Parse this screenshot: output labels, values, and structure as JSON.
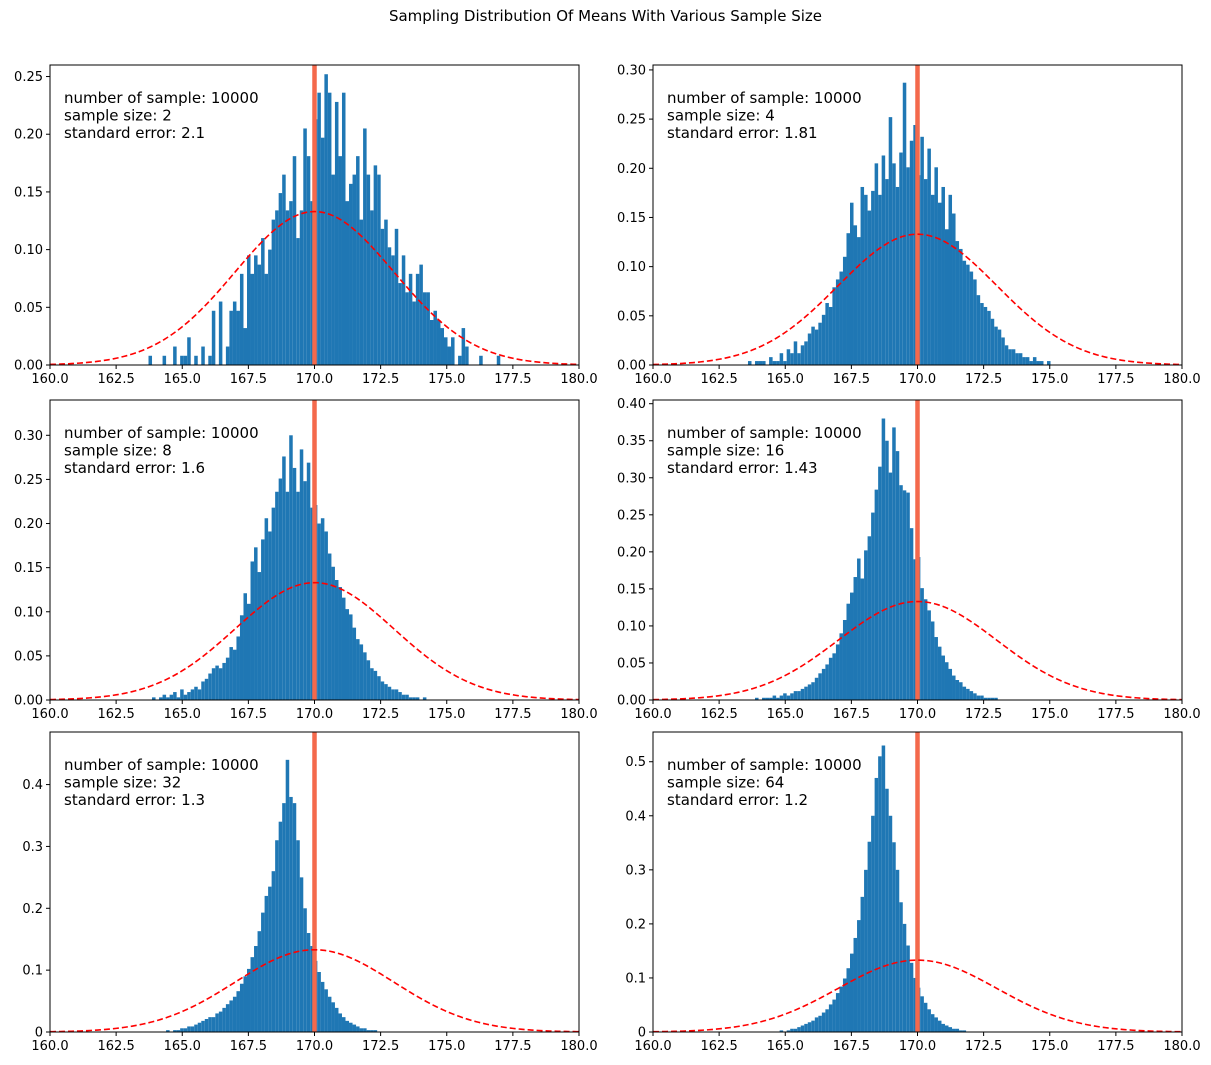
{
  "figure": {
    "title": "Sampling Distribution Of Means With Various Sample Size",
    "colors": {
      "bars": "#1f77b4",
      "mean_line": "#f4694c",
      "normal_curve": "#ff0000"
    }
  },
  "chart_data": [
    {
      "type": "bar",
      "x_range": [
        160,
        180
      ],
      "ylim": [
        0,
        0.26
      ],
      "xticks": [
        "160.0",
        "162.5",
        "165.0",
        "167.5",
        "170.0",
        "172.5",
        "175.0",
        "177.5",
        "180.0"
      ],
      "yticks": [
        "0.00",
        "0.05",
        "0.10",
        "0.15",
        "0.20",
        "0.25"
      ],
      "annotation": [
        "number of sample: 10000",
        "sample size: 2",
        "standard error: 2.1"
      ],
      "mean": 170.0,
      "curve": {
        "mean": 170.0,
        "sd": 3.0
      },
      "hist": {
        "start": 160.0,
        "width": 0.133,
        "values": [
          0,
          0,
          0,
          0,
          0,
          0,
          0,
          0,
          0,
          0,
          0,
          0,
          0,
          0,
          0,
          0,
          0,
          0,
          0,
          0,
          0,
          0,
          0,
          0,
          0,
          0,
          0,
          0,
          0.008,
          0,
          0,
          0,
          0.008,
          0,
          0,
          0.016,
          0,
          0.008,
          0.008,
          0.024,
          0,
          0.008,
          0,
          0.016,
          0,
          0.008,
          0.047,
          0,
          0.055,
          0,
          0.016,
          0.047,
          0.055,
          0.047,
          0.079,
          0.032,
          0.095,
          0.079,
          0.095,
          0.087,
          0.11,
          0.079,
          0.1,
          0.126,
          0.134,
          0.149,
          0.165,
          0.134,
          0.142,
          0.181,
          0.11,
          0.134,
          0.205,
          0.181,
          0.142,
          0.213,
          0.236,
          0.197,
          0.252,
          0.236,
          0.165,
          0.228,
          0.181,
          0.236,
          0.142,
          0.157,
          0.165,
          0.181,
          0.126,
          0.205,
          0.165,
          0.134,
          0.173,
          0.165,
          0.118,
          0.126,
          0.102,
          0.095,
          0.118,
          0.071,
          0.095,
          0.063,
          0.079,
          0.055,
          0.079,
          0.087,
          0.063,
          0.063,
          0.039,
          0.047,
          0.039,
          0.032,
          0.024,
          0.016,
          0.024,
          0,
          0.008,
          0.032,
          0.016,
          0,
          0,
          0,
          0.008,
          0,
          0,
          0,
          0,
          0.008,
          0,
          0,
          0,
          0,
          0,
          0,
          0,
          0,
          0,
          0,
          0,
          0,
          0,
          0,
          0,
          0,
          0,
          0,
          0,
          0,
          0
        ]
      }
    },
    {
      "type": "bar",
      "x_range": [
        160,
        180
      ],
      "ylim": [
        0,
        0.305
      ],
      "xticks": [
        "160.0",
        "162.5",
        "165.0",
        "167.5",
        "170.0",
        "172.5",
        "175.0",
        "177.5",
        "180.0"
      ],
      "yticks": [
        "0.00",
        "0.05",
        "0.10",
        "0.15",
        "0.20",
        "0.25",
        "0.30"
      ],
      "annotation": [
        "number of sample: 10000",
        "sample size: 4",
        "standard error: 1.81"
      ],
      "mean": 170.0,
      "curve": {
        "mean": 170.0,
        "sd": 3.0
      },
      "hist": {
        "start": 160.0,
        "width": 0.133,
        "values": [
          0,
          0,
          0,
          0,
          0,
          0,
          0,
          0,
          0,
          0,
          0,
          0,
          0,
          0,
          0,
          0,
          0,
          0,
          0,
          0,
          0,
          0,
          0,
          0,
          0,
          0,
          0,
          0.004,
          0,
          0.004,
          0.004,
          0.004,
          0,
          0.008,
          0.004,
          0.004,
          0.012,
          0.004,
          0.016,
          0.012,
          0.024,
          0.012,
          0.02,
          0.024,
          0.032,
          0.039,
          0.036,
          0.043,
          0.051,
          0.063,
          0.059,
          0.079,
          0.087,
          0.095,
          0.11,
          0.134,
          0.165,
          0.142,
          0.13,
          0.181,
          0.173,
          0.157,
          0.177,
          0.205,
          0.173,
          0.213,
          0.189,
          0.252,
          0.205,
          0.181,
          0.216,
          0.287,
          0.201,
          0.228,
          0.244,
          0.193,
          0.232,
          0.189,
          0.22,
          0.173,
          0.201,
          0.165,
          0.181,
          0.138,
          0.173,
          0.154,
          0.126,
          0.118,
          0.106,
          0.102,
          0.095,
          0.087,
          0.071,
          0.063,
          0.059,
          0.055,
          0.047,
          0.039,
          0.036,
          0.028,
          0.02,
          0.016,
          0.016,
          0.012,
          0.012,
          0.008,
          0.008,
          0.004,
          0.008,
          0.004,
          0.004,
          0,
          0.004,
          0,
          0,
          0,
          0,
          0,
          0,
          0,
          0,
          0,
          0,
          0,
          0,
          0,
          0,
          0,
          0,
          0,
          0,
          0,
          0,
          0,
          0,
          0,
          0,
          0,
          0,
          0,
          0,
          0,
          0,
          0,
          0,
          0,
          0,
          0,
          0
        ]
      }
    },
    {
      "type": "bar",
      "x_range": [
        160,
        180
      ],
      "ylim": [
        0,
        0.34
      ],
      "xticks": [
        "160.0",
        "162.5",
        "165.0",
        "167.5",
        "170.0",
        "172.5",
        "175.0",
        "177.5",
        "180.0"
      ],
      "yticks": [
        "0.00",
        "0.05",
        "0.10",
        "0.15",
        "0.20",
        "0.25",
        "0.30"
      ],
      "annotation": [
        "number of sample: 10000",
        "sample size: 8",
        "standard error: 1.6"
      ],
      "mean": 170.0,
      "curve": {
        "mean": 170.0,
        "sd": 3.0
      },
      "hist": {
        "start": 160.0,
        "width": 0.133,
        "values": [
          0,
          0,
          0,
          0,
          0,
          0,
          0,
          0,
          0,
          0,
          0,
          0,
          0,
          0,
          0,
          0,
          0,
          0,
          0,
          0,
          0,
          0,
          0,
          0,
          0,
          0,
          0,
          0,
          0,
          0.003,
          0,
          0.003,
          0.006,
          0.003,
          0.006,
          0.009,
          0.003,
          0.012,
          0.006,
          0.009,
          0.012,
          0.015,
          0.012,
          0.021,
          0.024,
          0.03,
          0.036,
          0.039,
          0.036,
          0.042,
          0.048,
          0.06,
          0.057,
          0.072,
          0.096,
          0.121,
          0.109,
          0.157,
          0.173,
          0.145,
          0.182,
          0.206,
          0.191,
          0.218,
          0.236,
          0.251,
          0.276,
          0.236,
          0.3,
          0.263,
          0.236,
          0.284,
          0.248,
          0.269,
          0.218,
          0.221,
          0.2,
          0.206,
          0.191,
          0.166,
          0.151,
          0.136,
          0.128,
          0.116,
          0.103,
          0.097,
          0.082,
          0.069,
          0.063,
          0.054,
          0.045,
          0.036,
          0.033,
          0.027,
          0.021,
          0.018,
          0.015,
          0.012,
          0.012,
          0.009,
          0.006,
          0.006,
          0.003,
          0.003,
          0.003,
          0,
          0.003,
          0,
          0,
          0,
          0,
          0,
          0,
          0,
          0,
          0,
          0,
          0,
          0,
          0,
          0,
          0,
          0,
          0,
          0,
          0,
          0,
          0,
          0,
          0,
          0,
          0,
          0,
          0,
          0,
          0,
          0,
          0,
          0,
          0,
          0,
          0,
          0,
          0,
          0,
          0,
          0,
          0,
          0,
          0,
          0,
          0
        ]
      }
    },
    {
      "type": "bar",
      "x_range": [
        160,
        180
      ],
      "ylim": [
        0,
        0.405
      ],
      "xticks": [
        "160.0",
        "162.5",
        "165.0",
        "167.5",
        "170.0",
        "172.5",
        "175.0",
        "177.5",
        "180.0"
      ],
      "yticks": [
        "0.00",
        "0.05",
        "0.10",
        "0.15",
        "0.20",
        "0.25",
        "0.30",
        "0.35",
        "0.40"
      ],
      "annotation": [
        "number of sample: 10000",
        "sample size: 16",
        "standard error: 1.43"
      ],
      "mean": 170.0,
      "curve": {
        "mean": 170.0,
        "sd": 3.0
      },
      "hist": {
        "start": 160.0,
        "width": 0.133,
        "values": [
          0,
          0,
          0,
          0,
          0,
          0,
          0,
          0,
          0,
          0,
          0,
          0,
          0,
          0,
          0,
          0,
          0,
          0,
          0,
          0,
          0,
          0,
          0,
          0,
          0,
          0,
          0,
          0,
          0,
          0.003,
          0,
          0.003,
          0.003,
          0.003,
          0.006,
          0.003,
          0.006,
          0.009,
          0.006,
          0.009,
          0.012,
          0.012,
          0.015,
          0.018,
          0.021,
          0.024,
          0.03,
          0.036,
          0.042,
          0.048,
          0.057,
          0.063,
          0.075,
          0.09,
          0.108,
          0.13,
          0.145,
          0.166,
          0.191,
          0.164,
          0.202,
          0.221,
          0.253,
          0.284,
          0.315,
          0.38,
          0.35,
          0.307,
          0.368,
          0.336,
          0.29,
          0.283,
          0.28,
          0.232,
          0.19,
          0.193,
          0.151,
          0.136,
          0.121,
          0.106,
          0.085,
          0.072,
          0.06,
          0.051,
          0.042,
          0.033,
          0.027,
          0.024,
          0.018,
          0.015,
          0.012,
          0.009,
          0.006,
          0.006,
          0.003,
          0.003,
          0.003,
          0.003,
          0,
          0,
          0,
          0,
          0,
          0,
          0,
          0,
          0,
          0,
          0,
          0,
          0,
          0,
          0,
          0,
          0,
          0,
          0,
          0,
          0,
          0,
          0,
          0,
          0,
          0,
          0,
          0,
          0,
          0,
          0,
          0,
          0,
          0,
          0,
          0,
          0,
          0,
          0,
          0,
          0,
          0,
          0,
          0,
          0,
          0,
          0,
          0,
          0,
          0,
          0,
          0,
          0
        ]
      }
    },
    {
      "type": "bar",
      "x_range": [
        160,
        180
      ],
      "ylim": [
        0,
        0.485
      ],
      "xticks": [
        "160.0",
        "162.5",
        "165.0",
        "167.5",
        "170.0",
        "172.5",
        "175.0",
        "177.5",
        "180.0"
      ],
      "yticks": [
        "0",
        "0.1",
        "0.2",
        "0.3",
        "0.4"
      ],
      "annotation": [
        "number of sample: 10000",
        "sample size: 32",
        "standard error: 1.3"
      ],
      "mean": 170.0,
      "curve": {
        "mean": 170.0,
        "sd": 3.0
      },
      "hist": {
        "start": 160.0,
        "width": 0.133,
        "values": [
          0,
          0,
          0,
          0,
          0,
          0,
          0,
          0,
          0,
          0,
          0,
          0,
          0,
          0,
          0,
          0,
          0,
          0,
          0,
          0,
          0,
          0,
          0,
          0,
          0,
          0,
          0,
          0,
          0,
          0,
          0,
          0,
          0,
          0.003,
          0,
          0.003,
          0.003,
          0.006,
          0.006,
          0.009,
          0.009,
          0.012,
          0.015,
          0.018,
          0.021,
          0.024,
          0.024,
          0.03,
          0.033,
          0.039,
          0.045,
          0.051,
          0.057,
          0.066,
          0.078,
          0.09,
          0.102,
          0.121,
          0.139,
          0.163,
          0.193,
          0.22,
          0.235,
          0.26,
          0.31,
          0.34,
          0.37,
          0.44,
          0.38,
          0.37,
          0.31,
          0.25,
          0.2,
          0.16,
          0.139,
          0.115,
          0.097,
          0.081,
          0.069,
          0.057,
          0.048,
          0.039,
          0.03,
          0.024,
          0.018,
          0.015,
          0.012,
          0.009,
          0.006,
          0.006,
          0.003,
          0.003,
          0.003,
          0,
          0,
          0,
          0,
          0,
          0,
          0,
          0,
          0,
          0,
          0,
          0,
          0,
          0,
          0,
          0,
          0,
          0,
          0,
          0,
          0,
          0,
          0,
          0,
          0,
          0,
          0,
          0,
          0,
          0,
          0,
          0,
          0,
          0,
          0,
          0,
          0,
          0,
          0,
          0,
          0,
          0,
          0,
          0,
          0,
          0,
          0,
          0,
          0,
          0,
          0,
          0,
          0,
          0,
          0,
          0,
          0,
          0,
          0,
          0,
          0,
          0,
          0,
          0
        ]
      }
    },
    {
      "type": "bar",
      "x_range": [
        160,
        180
      ],
      "ylim": [
        0,
        0.555
      ],
      "xticks": [
        "160.0",
        "162.5",
        "165.0",
        "167.5",
        "170.0",
        "172.5",
        "175.0",
        "177.5",
        "180.0"
      ],
      "yticks": [
        "0",
        "0.1",
        "0.2",
        "0.3",
        "0.4",
        "0.5"
      ],
      "annotation": [
        "number of sample: 10000",
        "sample size: 64",
        "standard error: 1.2"
      ],
      "mean": 170.0,
      "curve": {
        "mean": 170.0,
        "sd": 3.0
      },
      "hist": {
        "start": 160.0,
        "width": 0.133,
        "values": [
          0,
          0,
          0,
          0,
          0,
          0,
          0,
          0,
          0,
          0,
          0,
          0,
          0,
          0,
          0,
          0,
          0,
          0,
          0,
          0,
          0,
          0,
          0,
          0,
          0,
          0,
          0,
          0,
          0,
          0,
          0,
          0,
          0,
          0,
          0,
          0,
          0.003,
          0,
          0.003,
          0.006,
          0.006,
          0.009,
          0.012,
          0.015,
          0.018,
          0.021,
          0.027,
          0.03,
          0.036,
          0.042,
          0.051,
          0.06,
          0.072,
          0.084,
          0.099,
          0.118,
          0.145,
          0.174,
          0.207,
          0.25,
          0.3,
          0.352,
          0.4,
          0.47,
          0.51,
          0.53,
          0.45,
          0.4,
          0.351,
          0.3,
          0.24,
          0.2,
          0.16,
          0.128,
          0.1,
          0.082,
          0.066,
          0.054,
          0.042,
          0.033,
          0.027,
          0.021,
          0.015,
          0.012,
          0.009,
          0.006,
          0.006,
          0.003,
          0.003,
          0,
          0,
          0,
          0,
          0,
          0,
          0,
          0,
          0,
          0,
          0,
          0,
          0,
          0,
          0,
          0,
          0,
          0,
          0,
          0,
          0,
          0,
          0,
          0,
          0,
          0,
          0,
          0,
          0,
          0,
          0,
          0,
          0,
          0,
          0,
          0,
          0,
          0,
          0,
          0,
          0,
          0,
          0,
          0,
          0,
          0,
          0,
          0,
          0,
          0,
          0,
          0,
          0,
          0,
          0,
          0,
          0,
          0,
          0,
          0,
          0,
          0,
          0,
          0,
          0
        ]
      }
    }
  ]
}
